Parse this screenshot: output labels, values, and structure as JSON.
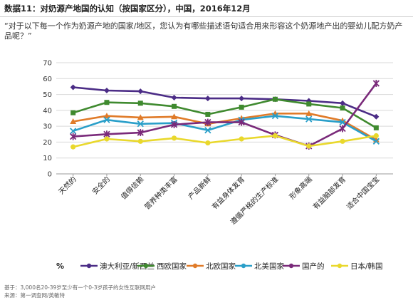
{
  "header": {
    "title": "数据11：对奶源产地国的认知（按国家区分），中国，2016年12月",
    "question": "“对于以下每一个作为奶源产地的国家/地区，您认为有哪些描述语句适合用来形容这个奶源地产出的婴幼儿配方奶产品呢？”"
  },
  "footer": {
    "base": "基于：3,000名20-39岁至少有一个0-3岁孩子的女性互联网用户",
    "source": "来源：第一调查网/英敏特"
  },
  "chart_data": {
    "type": "line",
    "unit_label": "%",
    "ylim": [
      0,
      70
    ],
    "yticks": [
      0,
      10,
      20,
      30,
      40,
      50,
      60,
      70
    ],
    "grid": true,
    "legend_position": "bottom",
    "categories": [
      "天然的",
      "安全的",
      "值得信赖",
      "营养种类丰富",
      "产品新鲜",
      "有益身体发育",
      "遵循严格的生产标准",
      "形象高端",
      "有益脑部发育",
      "适合中国宝宝"
    ],
    "series": [
      {
        "name": "澳大利亚/新西兰",
        "color": "#4b2c86",
        "values": [
          54.5,
          52.5,
          52,
          48,
          47.5,
          47.5,
          47,
          46,
          44.5,
          36
        ]
      },
      {
        "name": "西欧国家",
        "color": "#3f8a2f",
        "values": [
          38.5,
          45,
          44.5,
          42.5,
          37.5,
          42,
          47,
          44,
          41.5,
          29
        ]
      },
      {
        "name": "北欧国家",
        "color": "#e07b29",
        "values": [
          33,
          36.5,
          35.5,
          36,
          31.5,
          35,
          38,
          38,
          33.5,
          21.5
        ]
      },
      {
        "name": "北美国家",
        "color": "#2a9fc9",
        "values": [
          27,
          34,
          31.5,
          32,
          27.5,
          34,
          36.5,
          34.5,
          32.5,
          20.5
        ]
      },
      {
        "name": "国产的",
        "color": "#7a2a7a",
        "values": [
          23.5,
          25,
          26,
          31,
          32.5,
          32.5,
          24.5,
          17.5,
          28.5,
          57
        ]
      },
      {
        "name": "日本/韩国",
        "color": "#e9d82c",
        "values": [
          17,
          22,
          20.5,
          22.5,
          19.5,
          22,
          24,
          17.5,
          20.5,
          24
        ]
      }
    ]
  }
}
